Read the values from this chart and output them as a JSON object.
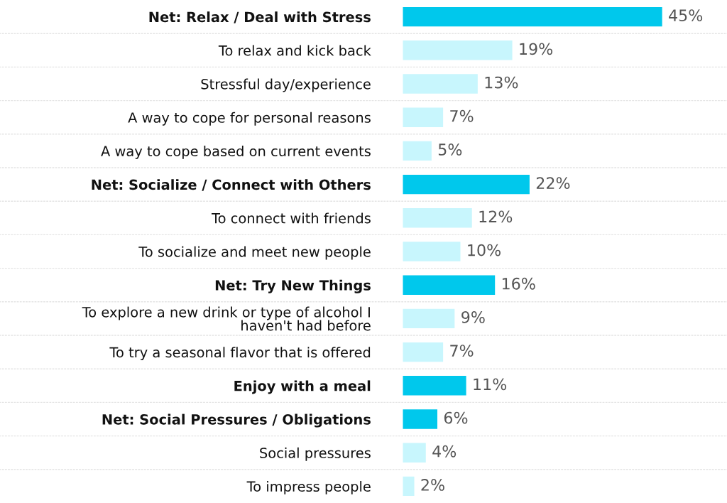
{
  "chart_data": {
    "type": "bar",
    "orientation": "horizontal",
    "categories": [
      "Net: Relax / Deal with Stress",
      "To relax and kick back",
      "Stressful day/experience",
      "A way to cope for personal reasons",
      "A way to cope based on current events",
      "Net: Socialize / Connect with Others",
      "To connect with friends",
      "To socialize and meet new people",
      "Net: Try New Things",
      "To explore a new drink or type of alcohol I haven't had before",
      "To try a seasonal flavor that is offered",
      "Enjoy with a meal",
      "Net: Social Pressures / Obligations",
      "Social pressures",
      "To impress people"
    ],
    "values": [
      45,
      19,
      13,
      7,
      5,
      22,
      12,
      10,
      16,
      9,
      7,
      11,
      6,
      4,
      2
    ],
    "colors": [
      "#00c8ec",
      "#c8f6fd",
      "#c8f6fd",
      "#c8f6fd",
      "#c8f6fd",
      "#00c8ec",
      "#c8f6fd",
      "#c8f6fd",
      "#00c8ec",
      "#c8f6fd",
      "#c8f6fd",
      "#00c8ec",
      "#00c8ec",
      "#c8f6fd",
      "#c8f6fd"
    ],
    "value_labels": [
      "45%",
      "19%",
      "13%",
      "7%",
      "5%",
      "22%",
      "12%",
      "10%",
      "16%",
      "9%",
      "7%",
      "11%",
      "6%",
      "4%",
      "2%"
    ],
    "grid": "y",
    "legend": false
  }
}
